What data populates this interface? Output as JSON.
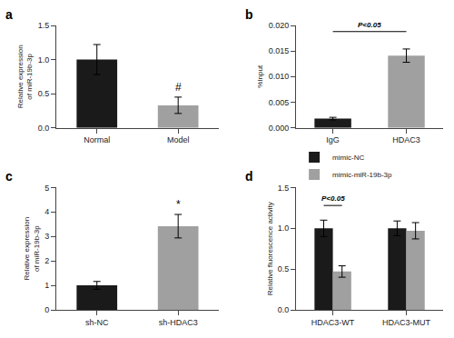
{
  "chart_data": [
    {
      "type": "bar",
      "title": "a",
      "categories": [
        "Normal",
        "Model"
      ],
      "values": [
        1.0,
        0.33
      ],
      "errors": [
        0.22,
        0.12
      ],
      "colors": [
        "#1a1a1a",
        "#a0a0a0"
      ],
      "ylabel": "Relative expression\nof miR-19b-3p",
      "ylim": [
        0,
        1.5
      ],
      "yticks": [
        {
          "value": 0,
          "label": "0.0"
        },
        0.5,
        {
          "value": 1,
          "label": "1.0"
        },
        1.5
      ],
      "grid": false,
      "annotations": [
        {
          "text": "#",
          "category": "Model"
        }
      ]
    },
    {
      "type": "bar",
      "title": "b",
      "categories": [
        "IgG",
        "HDAC3"
      ],
      "values": [
        0.0018,
        0.0141
      ],
      "errors": [
        0.00025,
        0.0013
      ],
      "colors": [
        "#1a1a1a",
        "#a0a0a0"
      ],
      "ylabel": "%Input",
      "ylim": [
        0,
        0.02
      ],
      "yticks": [
        {
          "value": 0,
          "label": "0.000"
        },
        0.005,
        {
          "value": 0.01,
          "label": "0.010"
        },
        0.015,
        {
          "value": 0.02,
          "label": "0.020"
        }
      ],
      "grid": false,
      "annotations": [
        {
          "text": "P<0.05",
          "from": "IgG",
          "to": "HDAC3",
          "y": 0.0188
        }
      ]
    },
    {
      "type": "bar",
      "title": "c",
      "categories": [
        "sh-NC",
        "sh-HDAC3"
      ],
      "values": [
        1.0,
        3.42
      ],
      "errors": [
        0.16,
        0.48
      ],
      "colors": [
        "#1a1a1a",
        "#a0a0a0"
      ],
      "ylabel": "Relative expression\nof miR-19b-3p",
      "ylim": [
        0,
        5
      ],
      "yticks": [
        0,
        1,
        2,
        3,
        4,
        5
      ],
      "grid": false,
      "annotations": [
        {
          "text": "*",
          "category": "sh-HDAC3"
        }
      ]
    },
    {
      "type": "bar",
      "title": "d",
      "categories": [
        "HDAC3-WT",
        "HDAC3-MUT"
      ],
      "series": [
        {
          "name": "mimic-NC",
          "color": "#1a1a1a",
          "values": [
            1.0,
            1.0
          ],
          "errors": [
            0.1,
            0.09
          ]
        },
        {
          "name": "mimic-miR-19b-3p",
          "color": "#a0a0a0",
          "values": [
            0.47,
            0.97
          ],
          "errors": [
            0.07,
            0.1
          ]
        }
      ],
      "ylabel": "Relative fluorescence activity",
      "ylim": [
        0,
        1.5
      ],
      "yticks": [
        {
          "value": 0,
          "label": "0.0"
        },
        0.5,
        {
          "value": 1,
          "label": "1.0"
        },
        1.5
      ],
      "grid": false,
      "legend": "upper left",
      "annotations": [
        {
          "text": "P<0.05",
          "category": "HDAC3-WT",
          "from": "mimic-NC",
          "to": "mimic-miR-19b-3p",
          "y": 1.28
        }
      ]
    }
  ]
}
